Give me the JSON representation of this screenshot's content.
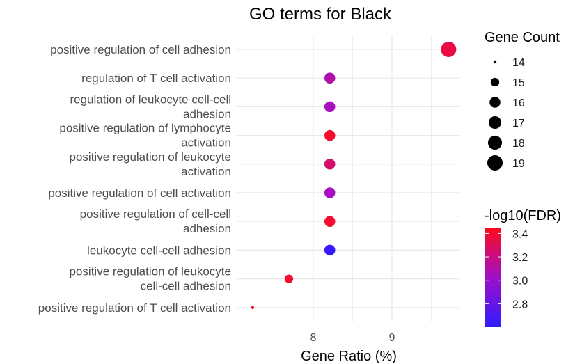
{
  "chart_data": {
    "type": "scatter",
    "title": "GO terms for Black",
    "xlabel": "Gene Ratio (%)",
    "ylabel": "",
    "xlim": [
      7.2,
      9.9
    ],
    "x_ticks": [
      8,
      9
    ],
    "grid": true,
    "legend_placement": "right",
    "terms": [
      {
        "label": [
          "positive regulation of cell adhesion"
        ],
        "gene_ratio": 9.72,
        "gene_count": 19,
        "neg_log10_fdr": 3.35
      },
      {
        "label": [
          "regulation of T cell activation"
        ],
        "gene_ratio": 8.21,
        "gene_count": 16,
        "neg_log10_fdr": 3.1
      },
      {
        "label": [
          "regulation of leukocyte cell-cell",
          "adhesion"
        ],
        "gene_ratio": 8.21,
        "gene_count": 16,
        "neg_log10_fdr": 3.05
      },
      {
        "label": [
          "positive regulation of lymphocyte",
          "activation"
        ],
        "gene_ratio": 8.21,
        "gene_count": 16,
        "neg_log10_fdr": 3.4
      },
      {
        "label": [
          "positive regulation of leukocyte",
          "activation"
        ],
        "gene_ratio": 8.21,
        "gene_count": 16,
        "neg_log10_fdr": 3.25
      },
      {
        "label": [
          "positive regulation of cell activation"
        ],
        "gene_ratio": 8.21,
        "gene_count": 16,
        "neg_log10_fdr": 3.05
      },
      {
        "label": [
          "positive regulation of cell-cell",
          "adhesion"
        ],
        "gene_ratio": 8.21,
        "gene_count": 16,
        "neg_log10_fdr": 3.4
      },
      {
        "label": [
          "leukocyte cell-cell adhesion"
        ],
        "gene_ratio": 8.21,
        "gene_count": 16,
        "neg_log10_fdr": 2.62
      },
      {
        "label": [
          "positive regulation of leukocyte",
          "cell-cell adhesion"
        ],
        "gene_ratio": 7.69,
        "gene_count": 15,
        "neg_log10_fdr": 3.4
      },
      {
        "label": [
          "positive regulation of T cell activation"
        ],
        "gene_ratio": 7.23,
        "gene_count": 14,
        "neg_log10_fdr": 3.4
      }
    ],
    "size_legend": {
      "title": "Gene Count",
      "values": [
        14,
        15,
        16,
        17,
        18,
        19
      ]
    },
    "color_legend": {
      "title": "-log10(FDR)",
      "ticks": [
        3.4,
        3.2,
        3.0,
        2.8
      ],
      "tick_labels": [
        "3.4",
        "3.2",
        "3.0",
        "2.8"
      ],
      "range": [
        2.6,
        3.45
      ],
      "low_color": "#2f1bff",
      "mid_color": "#a010c8",
      "high_color": "#ff0a1a"
    }
  }
}
